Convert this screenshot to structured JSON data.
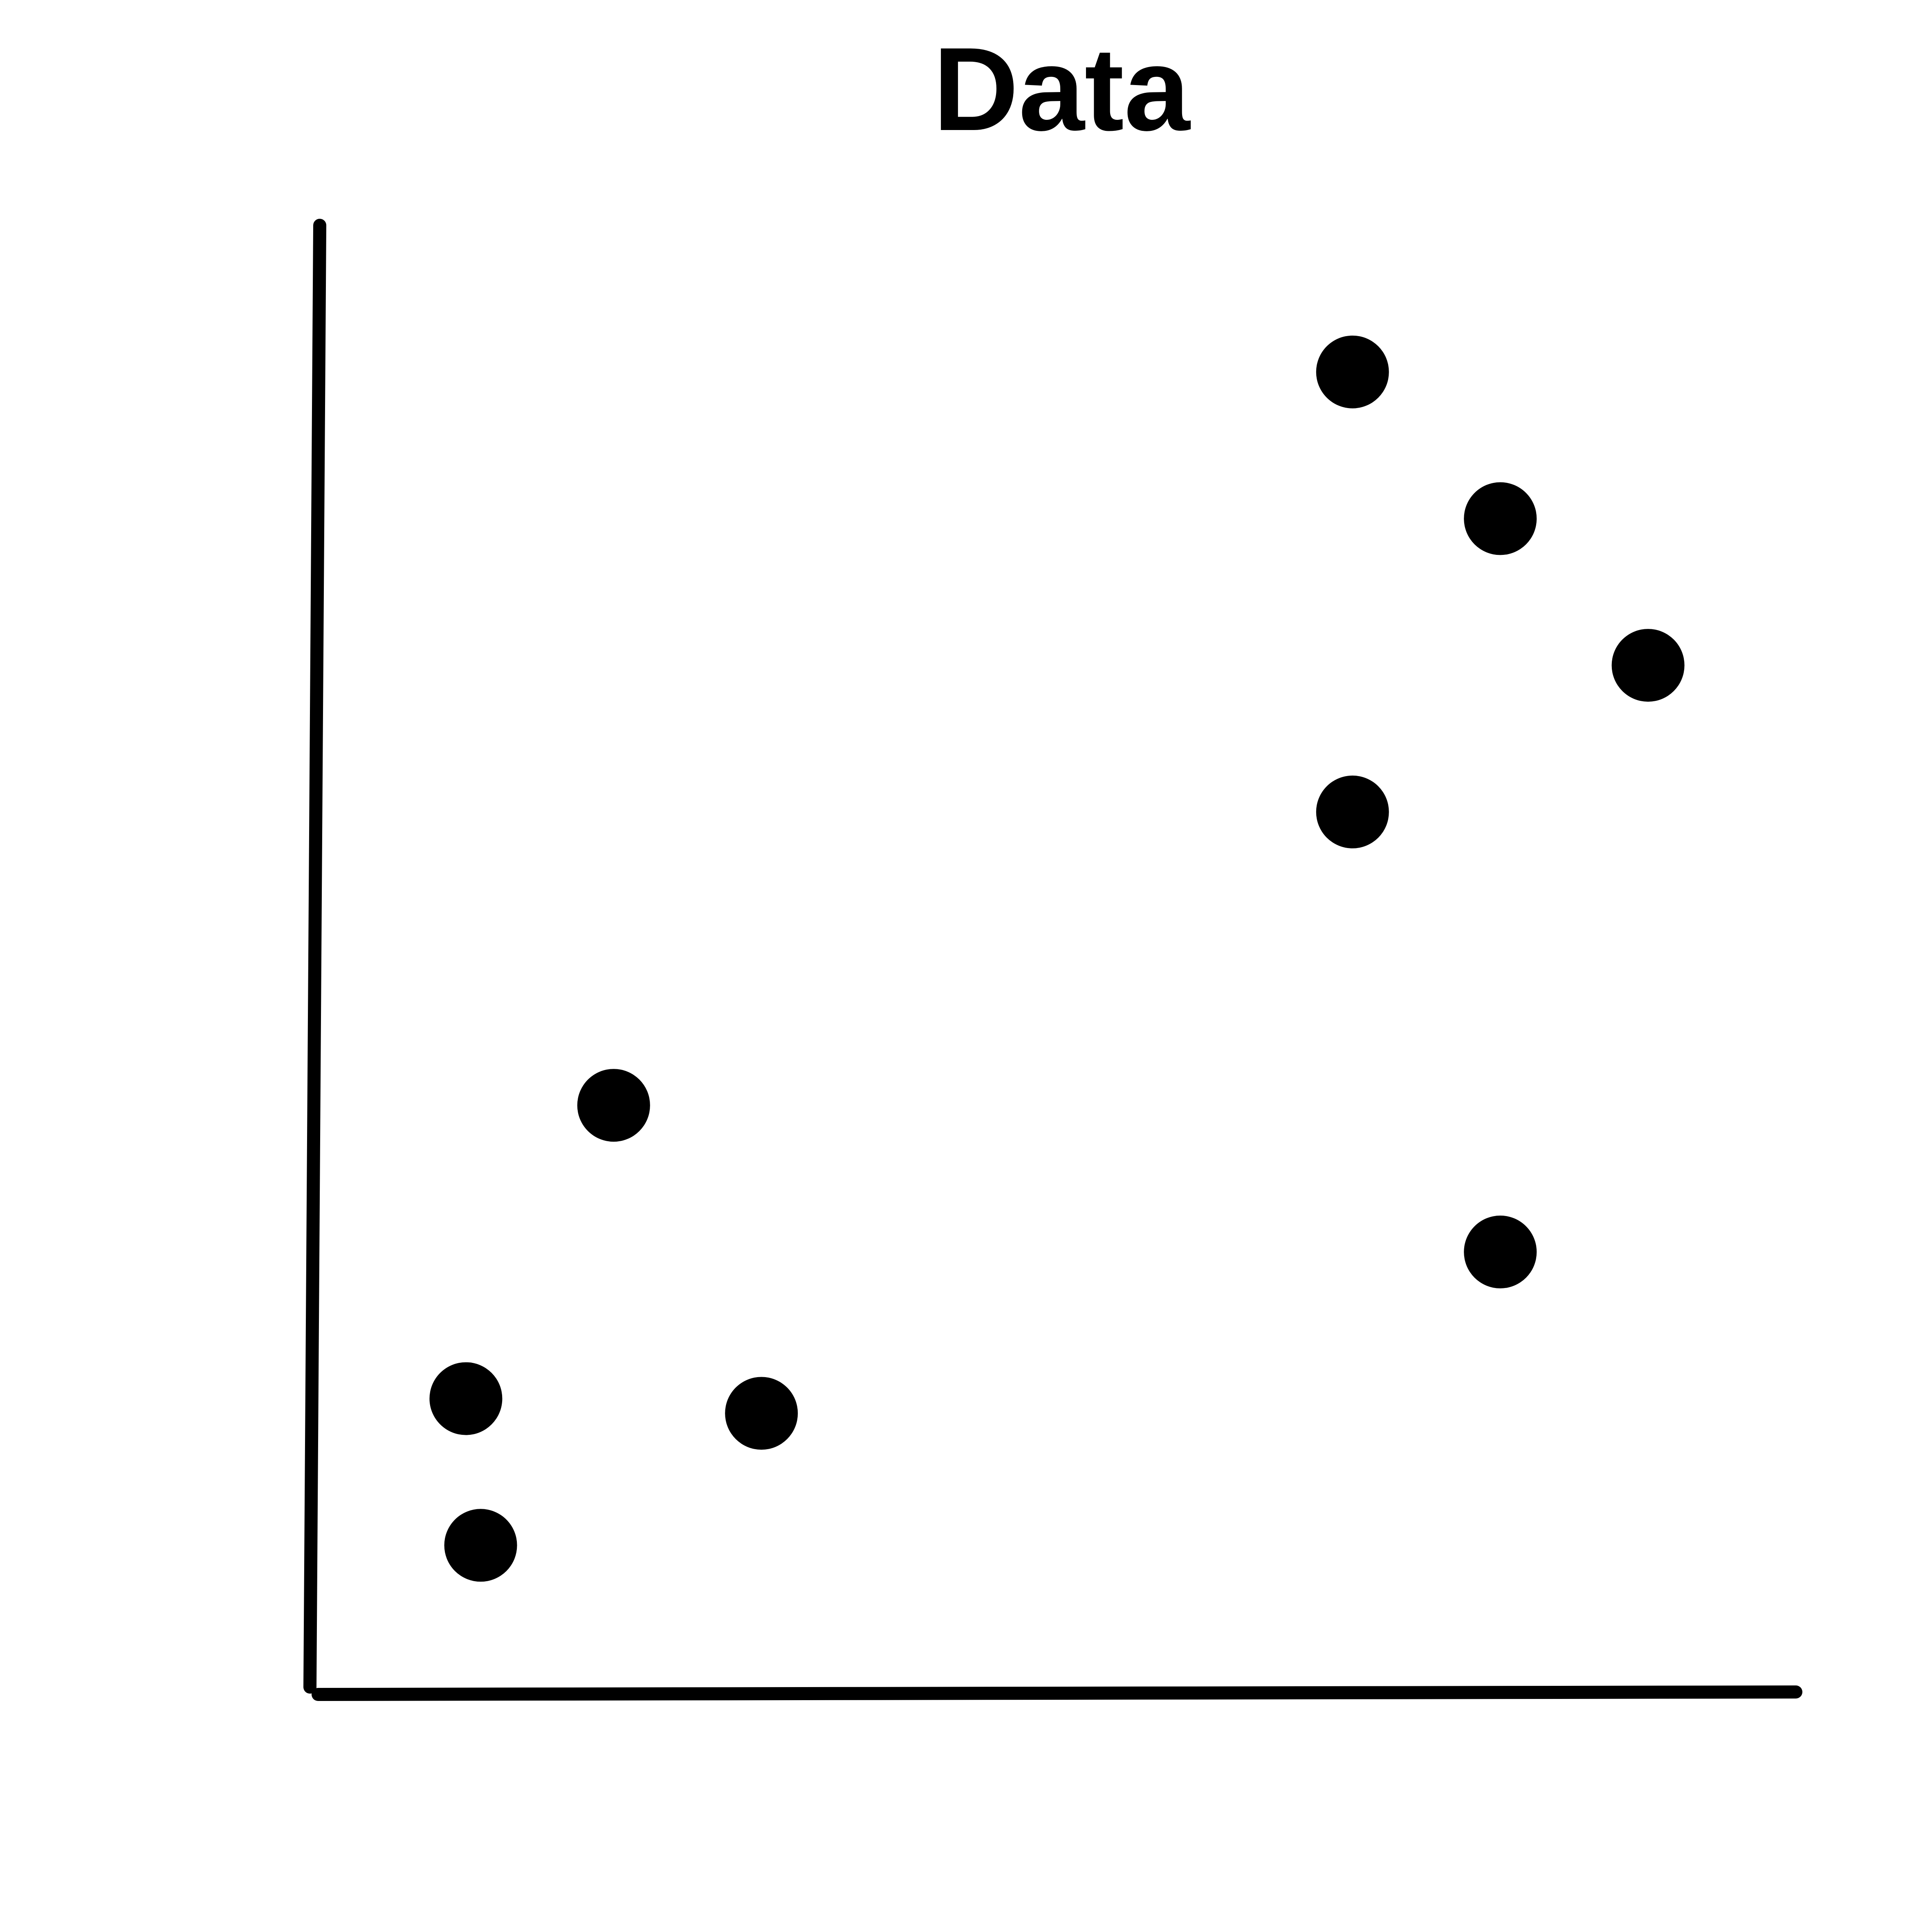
{
  "chart_data": {
    "type": "scatter",
    "title": "Data",
    "xlabel": "",
    "ylabel": "",
    "xlim": [
      0,
      10
    ],
    "ylim": [
      0,
      10
    ],
    "grid": false,
    "ticks": false,
    "marker_color": "#000000",
    "axis_color": "#000000",
    "points": [
      {
        "x": 7,
        "y": 9
      },
      {
        "x": 8,
        "y": 8
      },
      {
        "x": 9,
        "y": 7
      },
      {
        "x": 7,
        "y": 6
      },
      {
        "x": 2,
        "y": 4
      },
      {
        "x": 8,
        "y": 3
      },
      {
        "x": 1,
        "y": 2
      },
      {
        "x": 3,
        "y": 1.9
      },
      {
        "x": 1.1,
        "y": 1
      }
    ]
  }
}
